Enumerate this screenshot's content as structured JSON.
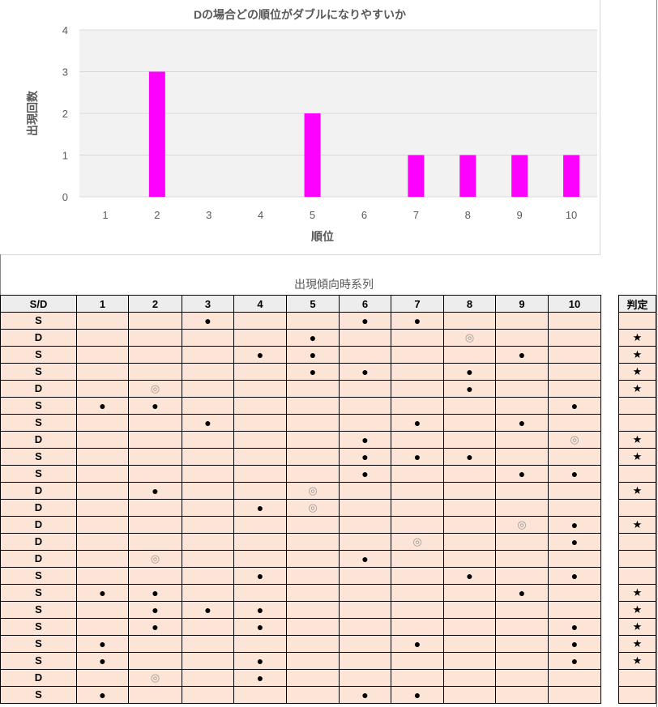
{
  "chart_data": {
    "type": "bar",
    "title": "Dの場合どの順位がダブルになりやすいか",
    "xlabel": "順位",
    "ylabel": "出現回数",
    "categories": [
      "1",
      "2",
      "3",
      "4",
      "5",
      "6",
      "7",
      "8",
      "9",
      "10"
    ],
    "values": [
      0,
      3,
      0,
      0,
      2,
      0,
      1,
      1,
      1,
      1
    ],
    "ylim": [
      0,
      4
    ],
    "yticks": [
      "0",
      "1",
      "2",
      "3",
      "4"
    ],
    "grid": true,
    "bar_color": "#ff00ff",
    "plot_bg": "#f2f2f2"
  },
  "table": {
    "title": "出現傾向時系列",
    "headers": [
      "S/D",
      "1",
      "2",
      "3",
      "4",
      "5",
      "6",
      "7",
      "8",
      "9",
      "10"
    ],
    "judge_header": "判定",
    "rows": [
      {
        "type": "S",
        "cells": [
          "",
          "",
          "●",
          "",
          "",
          "●",
          "●",
          "",
          "",
          ""
        ],
        "judge": ""
      },
      {
        "type": "D",
        "cells": [
          "",
          "",
          "",
          "",
          "●",
          "",
          "",
          "◎",
          "",
          ""
        ],
        "judge": "★"
      },
      {
        "type": "S",
        "cells": [
          "",
          "",
          "",
          "●",
          "●",
          "",
          "",
          "",
          "●",
          ""
        ],
        "judge": "★"
      },
      {
        "type": "S",
        "cells": [
          "",
          "",
          "",
          "",
          "●",
          "●",
          "",
          "●",
          "",
          ""
        ],
        "judge": "★"
      },
      {
        "type": "D",
        "cells": [
          "",
          "◎",
          "",
          "",
          "",
          "",
          "",
          "●",
          "",
          ""
        ],
        "judge": "★"
      },
      {
        "type": "S",
        "cells": [
          "●",
          "●",
          "",
          "",
          "",
          "",
          "",
          "",
          "",
          "●"
        ],
        "judge": ""
      },
      {
        "type": "S",
        "cells": [
          "",
          "",
          "●",
          "",
          "",
          "",
          "●",
          "",
          "●",
          ""
        ],
        "judge": ""
      },
      {
        "type": "D",
        "cells": [
          "",
          "",
          "",
          "",
          "",
          "●",
          "",
          "",
          "",
          "◎"
        ],
        "judge": "★"
      },
      {
        "type": "S",
        "cells": [
          "",
          "",
          "",
          "",
          "",
          "●",
          "●",
          "●",
          "",
          ""
        ],
        "judge": "★"
      },
      {
        "type": "S",
        "cells": [
          "",
          "",
          "",
          "",
          "",
          "●",
          "",
          "",
          "●",
          "●"
        ],
        "judge": ""
      },
      {
        "type": "D",
        "cells": [
          "",
          "●",
          "",
          "",
          "◎",
          "",
          "",
          "",
          "",
          ""
        ],
        "judge": "★"
      },
      {
        "type": "D",
        "cells": [
          "",
          "",
          "",
          "●",
          "◎",
          "",
          "",
          "",
          "",
          ""
        ],
        "judge": ""
      },
      {
        "type": "D",
        "cells": [
          "",
          "",
          "",
          "",
          "",
          "",
          "",
          "",
          "◎",
          "●"
        ],
        "judge": "★"
      },
      {
        "type": "D",
        "cells": [
          "",
          "",
          "",
          "",
          "",
          "",
          "◎",
          "",
          "",
          "●"
        ],
        "judge": ""
      },
      {
        "type": "D",
        "cells": [
          "",
          "◎",
          "",
          "",
          "",
          "●",
          "",
          "",
          "",
          ""
        ],
        "judge": ""
      },
      {
        "type": "S",
        "cells": [
          "",
          "",
          "",
          "●",
          "",
          "",
          "",
          "●",
          "",
          "●"
        ],
        "judge": ""
      },
      {
        "type": "S",
        "cells": [
          "●",
          "●",
          "",
          "",
          "",
          "",
          "",
          "",
          "●",
          ""
        ],
        "judge": "★"
      },
      {
        "type": "S",
        "cells": [
          "",
          "●",
          "●",
          "●",
          "",
          "",
          "",
          "",
          "",
          ""
        ],
        "judge": "★"
      },
      {
        "type": "S",
        "cells": [
          "",
          "●",
          "",
          "●",
          "",
          "",
          "",
          "",
          "",
          "●"
        ],
        "judge": "★"
      },
      {
        "type": "S",
        "cells": [
          "●",
          "",
          "",
          "",
          "",
          "",
          "●",
          "",
          "",
          "●"
        ],
        "judge": "★"
      },
      {
        "type": "S",
        "cells": [
          "●",
          "",
          "",
          "●",
          "",
          "",
          "",
          "",
          "",
          "●"
        ],
        "judge": "★"
      },
      {
        "type": "D",
        "cells": [
          "",
          "◎",
          "",
          "●",
          "",
          "",
          "",
          "",
          "",
          ""
        ],
        "judge": ""
      },
      {
        "type": "S",
        "cells": [
          "●",
          "",
          "",
          "",
          "",
          "●",
          "●",
          "",
          "",
          ""
        ],
        "judge": ""
      }
    ]
  }
}
